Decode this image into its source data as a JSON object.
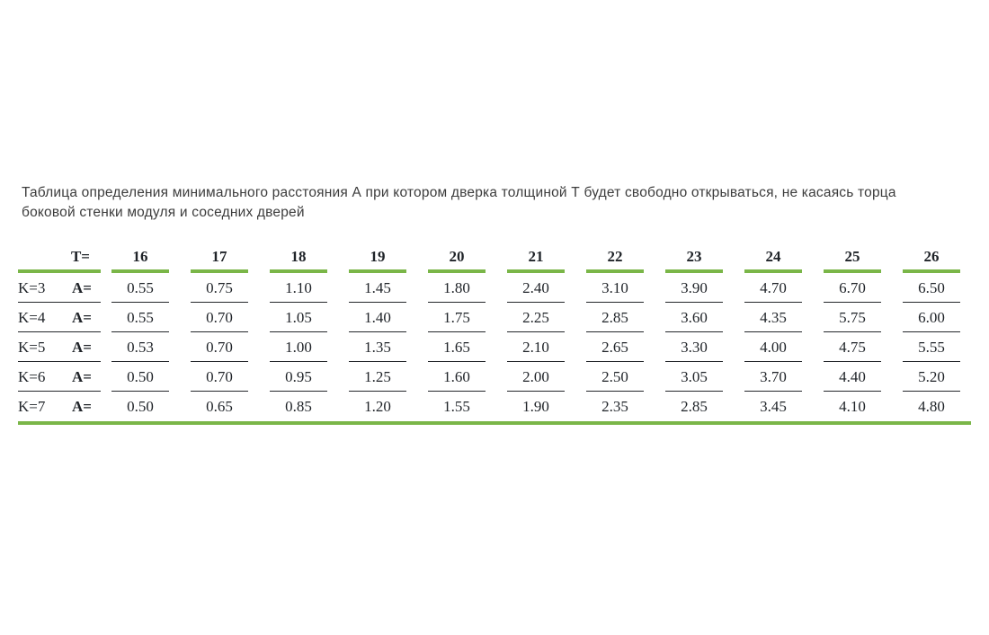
{
  "title": "Таблица определения минимального расстояния А при котором дверка толщиной Т будет свободно открываться, не касаясь торца боковой стенки модуля и соседних дверей",
  "colors": {
    "accent_green": "#7ab648",
    "rule_dark": "#24272b",
    "text": "#1f2328",
    "title_text": "#3c3c3c"
  },
  "table": {
    "corner_label": "T=",
    "col_headers": [
      "16",
      "17",
      "18",
      "19",
      "20",
      "21",
      "22",
      "23",
      "24",
      "25",
      "26"
    ],
    "rows": [
      {
        "k_label": "K=3",
        "a_label": "A=",
        "values": [
          "0.55",
          "0.75",
          "1.10",
          "1.45",
          "1.80",
          "2.40",
          "3.10",
          "3.90",
          "4.70",
          "6.70",
          "6.50"
        ]
      },
      {
        "k_label": "K=4",
        "a_label": "A=",
        "values": [
          "0.55",
          "0.70",
          "1.05",
          "1.40",
          "1.75",
          "2.25",
          "2.85",
          "3.60",
          "4.35",
          "5.75",
          "6.00"
        ]
      },
      {
        "k_label": "K=5",
        "a_label": "A=",
        "values": [
          "0.53",
          "0.70",
          "1.00",
          "1.35",
          "1.65",
          "2.10",
          "2.65",
          "3.30",
          "4.00",
          "4.75",
          "5.55"
        ]
      },
      {
        "k_label": "K=6",
        "a_label": "A=",
        "values": [
          "0.50",
          "0.70",
          "0.95",
          "1.25",
          "1.60",
          "2.00",
          "2.50",
          "3.05",
          "3.70",
          "4.40",
          "5.20"
        ]
      },
      {
        "k_label": "K=7",
        "a_label": "A=",
        "values": [
          "0.50",
          "0.65",
          "0.85",
          "1.20",
          "1.55",
          "1.90",
          "2.35",
          "2.85",
          "3.45",
          "4.10",
          "4.80"
        ]
      }
    ]
  }
}
